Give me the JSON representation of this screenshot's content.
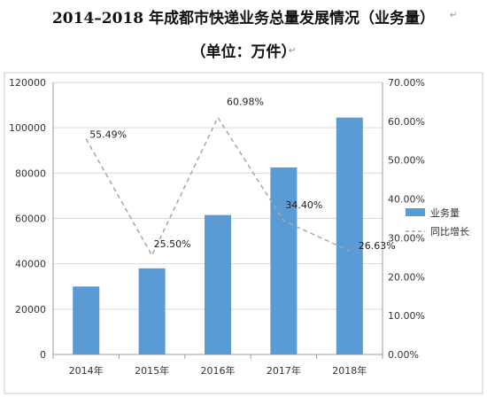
{
  "title_line1": "2014–2018 年成都市快递业务总量发展情况（业务量）",
  "title_line2": "（单位：万件）",
  "chart_data": {
    "type": "bar",
    "categories": [
      "2014年",
      "2015年",
      "2016年",
      "2017年",
      "2018年"
    ],
    "series": [
      {
        "name": "业务量",
        "type": "bar",
        "axis": "left",
        "values": [
          30000,
          38000,
          61500,
          82500,
          104500
        ],
        "color": "#5b9bd5"
      },
      {
        "name": "同比增长",
        "type": "line",
        "axis": "right",
        "style": "dashed",
        "values": [
          55.49,
          25.5,
          60.98,
          34.4,
          26.63
        ],
        "labels": [
          "55.49%",
          "25.50%",
          "60.98%",
          "34.40%",
          "26.63%"
        ],
        "color": "#a6a6a6"
      }
    ],
    "y_left": {
      "min": 0,
      "max": 120000,
      "ticks": [
        "0",
        "20000",
        "40000",
        "60000",
        "80000",
        "100000",
        "120000"
      ]
    },
    "y_right": {
      "min": 0,
      "max": 70,
      "ticks": [
        "0.00%",
        "10.00%",
        "20.00%",
        "30.00%",
        "40.00%",
        "50.00%",
        "60.00%",
        "70.00%"
      ]
    },
    "grid": true,
    "legend_position": "right"
  }
}
